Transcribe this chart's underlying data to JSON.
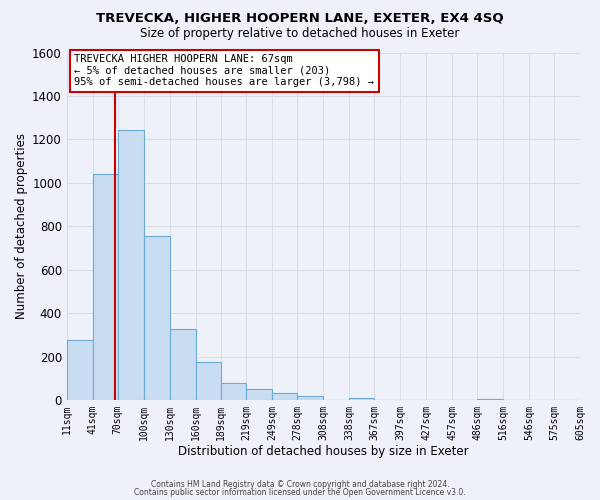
{
  "title": "TREVECKA, HIGHER HOOPERN LANE, EXETER, EX4 4SQ",
  "subtitle": "Size of property relative to detached houses in Exeter",
  "xlabel": "Distribution of detached houses by size in Exeter",
  "ylabel": "Number of detached properties",
  "bar_color": "#c9ddf2",
  "bar_edge_color": "#6aaad4",
  "background_color": "#eef2f8",
  "grid_color": "#d8dee8",
  "vline_x": 67,
  "vline_color": "#cc0000",
  "bin_edges": [
    11,
    41,
    70,
    100,
    130,
    160,
    189,
    219,
    249,
    278,
    308,
    338,
    367,
    397,
    427,
    457,
    486,
    516,
    546,
    575,
    605
  ],
  "bin_labels": [
    "11sqm",
    "41sqm",
    "70sqm",
    "100sqm",
    "130sqm",
    "160sqm",
    "189sqm",
    "219sqm",
    "249sqm",
    "278sqm",
    "308sqm",
    "338sqm",
    "367sqm",
    "397sqm",
    "427sqm",
    "457sqm",
    "486sqm",
    "516sqm",
    "546sqm",
    "575sqm",
    "605sqm"
  ],
  "counts": [
    275,
    1040,
    1245,
    755,
    330,
    175,
    80,
    50,
    35,
    20,
    0,
    10,
    0,
    0,
    0,
    0,
    5,
    0,
    0,
    0
  ],
  "ylim": [
    0,
    1600
  ],
  "yticks": [
    0,
    200,
    400,
    600,
    800,
    1000,
    1200,
    1400,
    1600
  ],
  "annotation_line1": "TREVECKA HIGHER HOOPERN LANE: 67sqm",
  "annotation_line2": "← 5% of detached houses are smaller (203)",
  "annotation_line3": "95% of semi-detached houses are larger (3,798) →",
  "annotation_box_color": "#ffffff",
  "annotation_box_edge": "#cc0000",
  "footer_line1": "Contains HM Land Registry data © Crown copyright and database right 2024.",
  "footer_line2": "Contains public sector information licensed under the Open Government Licence v3.0."
}
